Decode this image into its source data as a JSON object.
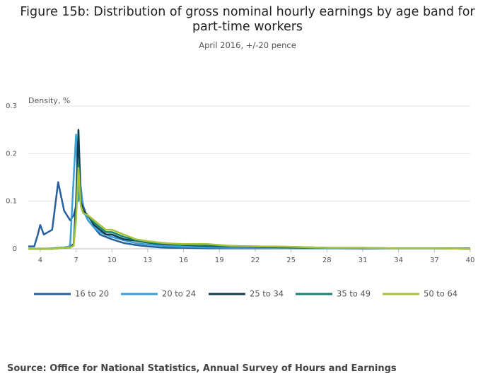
{
  "chart_data": {
    "type": "line",
    "title": "Figure 15b: Distribution of gross nominal hourly earnings by age band for part-time workers",
    "subtitle": "April 2016, +/-20 pence",
    "y_label": "Density, %",
    "source": "Source: Office for National Statistics, Annual Survey of Hours and Earnings",
    "x": [
      3,
      3.5,
      3.8,
      4,
      4.3,
      5,
      5.5,
      6,
      6.5,
      6.8,
      7,
      7.2,
      7.4,
      7.6,
      8,
      8.5,
      9,
      9.5,
      10,
      11,
      12,
      13,
      14,
      15,
      16,
      18,
      20,
      22,
      25,
      28,
      31,
      34,
      37,
      40
    ],
    "series": [
      {
        "name": "16 to 20",
        "color": "#27609c",
        "values": [
          0.005,
          0.005,
          0.03,
          0.05,
          0.03,
          0.04,
          0.14,
          0.08,
          0.06,
          0.07,
          0.09,
          0.18,
          0.12,
          0.09,
          0.06,
          0.045,
          0.03,
          0.025,
          0.02,
          0.012,
          0.008,
          0.005,
          0.003,
          0.002,
          0.002,
          0.001,
          0.001,
          0.001,
          0.001,
          0.001,
          0.001,
          0.001,
          0.001,
          0.001
        ]
      },
      {
        "name": "20 to 24",
        "color": "#3a9fd6",
        "values": [
          0,
          0,
          0,
          0,
          0,
          0.001,
          0.002,
          0.003,
          0.005,
          0.15,
          0.24,
          0.1,
          0.13,
          0.08,
          0.06,
          0.045,
          0.035,
          0.03,
          0.025,
          0.018,
          0.012,
          0.009,
          0.007,
          0.005,
          0.004,
          0.003,
          0.002,
          0.002,
          0.001,
          0.001,
          0.001,
          0.001,
          0.001,
          0
        ]
      },
      {
        "name": "25 to 34",
        "color": "#0f3a4f",
        "values": [
          0,
          0,
          0,
          0,
          0,
          0,
          0.001,
          0.002,
          0.003,
          0.01,
          0.1,
          0.25,
          0.1,
          0.08,
          0.07,
          0.05,
          0.04,
          0.03,
          0.03,
          0.02,
          0.017,
          0.013,
          0.01,
          0.009,
          0.008,
          0.006,
          0.005,
          0.004,
          0.003,
          0.002,
          0.001,
          0.001,
          0.001,
          0
        ]
      },
      {
        "name": "35 to 49",
        "color": "#13846f",
        "values": [
          0,
          0,
          0,
          0,
          0,
          0,
          0.001,
          0.002,
          0.003,
          0.008,
          0.08,
          0.18,
          0.09,
          0.075,
          0.07,
          0.055,
          0.045,
          0.035,
          0.035,
          0.025,
          0.018,
          0.014,
          0.011,
          0.01,
          0.009,
          0.007,
          0.006,
          0.005,
          0.004,
          0.002,
          0.002,
          0.001,
          0.001,
          0
        ]
      },
      {
        "name": "50 to 64",
        "color": "#a8c23b",
        "values": [
          0,
          0,
          0,
          0,
          0,
          0,
          0.001,
          0.002,
          0.003,
          0.006,
          0.06,
          0.17,
          0.09,
          0.075,
          0.07,
          0.06,
          0.05,
          0.04,
          0.04,
          0.03,
          0.02,
          0.016,
          0.013,
          0.011,
          0.01,
          0.01,
          0.006,
          0.005,
          0.004,
          0.002,
          0.002,
          0.001,
          0.001,
          0
        ]
      }
    ],
    "xlim": [
      3,
      40
    ],
    "xticks": [
      4,
      7,
      10,
      13,
      16,
      19,
      22,
      25,
      28,
      31,
      34,
      37,
      40
    ],
    "ylim": [
      0,
      0.3
    ],
    "yticks": [
      0,
      0.1,
      0.2,
      0.3
    ],
    "grid": true
  }
}
